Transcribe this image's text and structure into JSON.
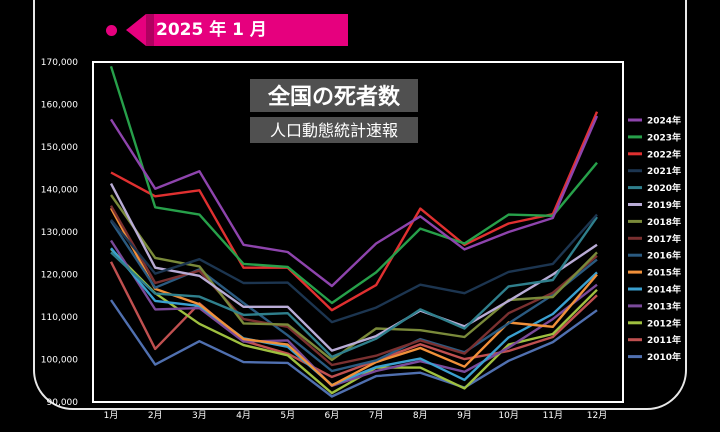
{
  "header": {
    "date_tag": "2025 年 1 月"
  },
  "chart_data": {
    "type": "line",
    "title": "全国の死者数",
    "subtitle": "人口動態統計速報",
    "categories": [
      "1月",
      "2月",
      "3月",
      "4月",
      "5月",
      "6月",
      "7月",
      "8月",
      "9月",
      "10月",
      "11月",
      "12月"
    ],
    "ylim": [
      90000,
      170000
    ],
    "yticks": [
      "90,000",
      "100,000",
      "110,000",
      "120,000",
      "130,000",
      "140,000",
      "150,000",
      "160,000",
      "170,000"
    ],
    "ytick_values": [
      90000,
      100000,
      110000,
      120000,
      130000,
      140000,
      150000,
      160000,
      170000
    ],
    "legend_position": "right",
    "series": [
      {
        "name": "2024年",
        "color": "#8e44ad",
        "values": [
          156500,
          140200,
          144300,
          127000,
          125300,
          117300,
          127300,
          133700,
          125900,
          130000,
          133300,
          157300
        ]
      },
      {
        "name": "2023年",
        "color": "#27a04a",
        "values": [
          169000,
          135800,
          134100,
          122500,
          121800,
          113300,
          120500,
          130800,
          127300,
          134100,
          133800,
          146300
        ]
      },
      {
        "name": "2022年",
        "color": "#e03030",
        "values": [
          144000,
          138400,
          139800,
          121600,
          121600,
          111600,
          117500,
          135500,
          127000,
          132000,
          134200,
          158300
        ]
      },
      {
        "name": "2021年",
        "color": "#1c3550",
        "values": [
          132900,
          120200,
          123600,
          118000,
          118100,
          108800,
          112200,
          117600,
          115600,
          120600,
          122500,
          134100
        ]
      },
      {
        "name": "2020年",
        "color": "#2f7f8c",
        "values": [
          125200,
          115500,
          114800,
          110500,
          110900,
          100600,
          104900,
          111800,
          107300,
          117200,
          118700,
          133500
        ]
      },
      {
        "name": "2019年",
        "color": "#b9acd6",
        "values": [
          141400,
          121600,
          119700,
          112400,
          112400,
          102100,
          105500,
          111500,
          107800,
          113800,
          120000,
          127000
        ]
      },
      {
        "name": "2018年",
        "color": "#7a8a3a",
        "values": [
          138700,
          123900,
          121900,
          108500,
          108200,
          99900,
          107300,
          106900,
          105300,
          114000,
          114700,
          125200
        ]
      },
      {
        "name": "2017年",
        "color": "#7a3030",
        "values": [
          136200,
          118000,
          120900,
          109500,
          107700,
          98700,
          100900,
          104500,
          101400,
          110900,
          115700,
          124400
        ]
      },
      {
        "name": "2016年",
        "color": "#2a5a80",
        "values": [
          132600,
          116900,
          121200,
          113300,
          105700,
          97300,
          99800,
          104800,
          101700,
          108500,
          115200,
          123500
        ]
      },
      {
        "name": "2015年",
        "color": "#f0903a",
        "values": [
          135600,
          116600,
          113000,
          104800,
          103500,
          93900,
          99400,
          102700,
          98300,
          108700,
          107700,
          120000
        ]
      },
      {
        "name": "2014年",
        "color": "#3aa0d0",
        "values": [
          126200,
          113800,
          112600,
          105000,
          103000,
          94000,
          98200,
          100200,
          95200,
          105200,
          110700,
          120500
        ]
      },
      {
        "name": "2013年",
        "color": "#7a4a9a",
        "values": [
          128000,
          111800,
          112100,
          104200,
          104500,
          93800,
          97300,
          99600,
          97100,
          102800,
          109500,
          117600
        ]
      },
      {
        "name": "2012年",
        "color": "#9fc040",
        "values": [
          126000,
          115600,
          108400,
          103400,
          101000,
          92100,
          98100,
          98100,
          93200,
          103500,
          106000,
          116400
        ]
      },
      {
        "name": "2011年",
        "color": "#c05050",
        "values": [
          123000,
          102500,
          113200,
          104400,
          101400,
          95900,
          99700,
          103600,
          100100,
          102000,
          105300,
          115100
        ]
      },
      {
        "name": "2010年",
        "color": "#5070b0",
        "values": [
          114000,
          98800,
          104300,
          99400,
          99200,
          91300,
          96100,
          96900,
          93400,
          99700,
          104100,
          111600
        ]
      }
    ]
  }
}
